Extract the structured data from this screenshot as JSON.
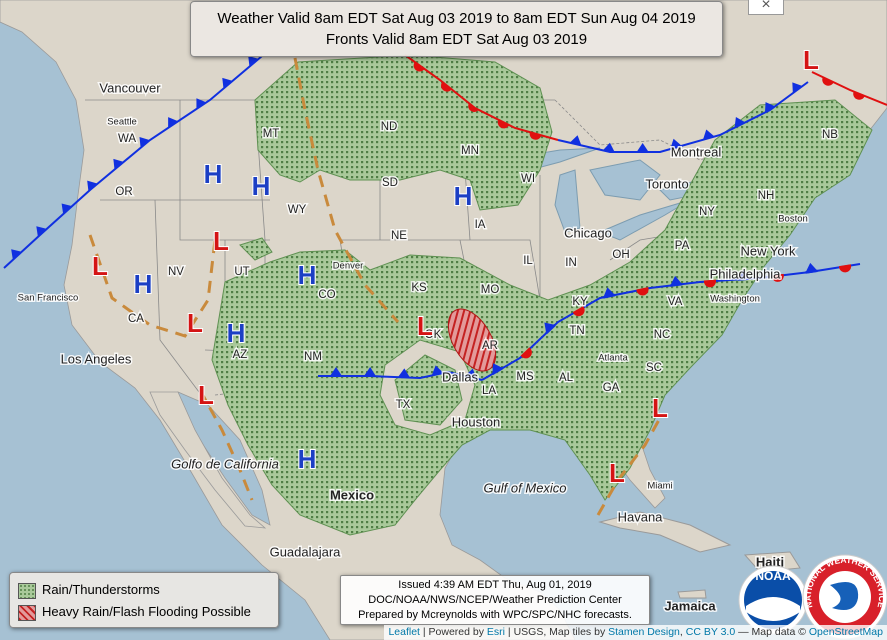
{
  "header": {
    "lines": [
      "Weather Valid 8am EDT Sat Aug 03 2019 to 8am EDT Sun Aug 04 2019",
      "Fronts Valid 8am EDT Sat Aug 03 2019"
    ]
  },
  "close": "×",
  "map_labels": [
    "Vancouver",
    "Seattle",
    "WA",
    "OR",
    "San Francisco",
    "CA",
    "NV",
    "UT",
    "CO",
    "AZ",
    "NM",
    "Los Angeles",
    "MT",
    "WY",
    "ND",
    "SD",
    "NE",
    "KS",
    "OK",
    "TX",
    "Denver",
    "Dallas",
    "Houston",
    "MN",
    "IA",
    "MO",
    "AR",
    "LA",
    "MS",
    "AL",
    "WI",
    "IL",
    "IN",
    "OH",
    "KY",
    "TN",
    "GA",
    "SC",
    "NC",
    "VA",
    "PA",
    "NY",
    "Chicago",
    "Toronto",
    "Montreal",
    "NH",
    "NB",
    "Boston",
    "New York",
    "Philadelphia",
    "Washington",
    "Atlanta",
    "Miami",
    "Havana",
    "Gulf of Mexico",
    "Golfo de California",
    "Mexico",
    "Guadalajara",
    "Jamaica",
    "Haiti"
  ],
  "pressure_centers": [
    "H",
    "H",
    "H",
    "H",
    "H",
    "H",
    "H",
    "L",
    "L",
    "L",
    "L",
    "L",
    "L",
    "L",
    "L"
  ],
  "legend": {
    "items": [
      "Rain/Thunderstorms",
      "Heavy Rain/Flash Flooding Possible"
    ]
  },
  "issued": {
    "lines": [
      "Issued 4:39 AM EDT Thu, Aug 01, 2019",
      "DOC/NOAA/NWS/NCEP/Weather Prediction Center",
      "Prepared by Mcreynolds with WPC/SPC/NHC forecasts."
    ]
  },
  "logos": {
    "noaa": "NOAA",
    "nws": "NATIONAL WEATHER SERVICE"
  },
  "attribution": [
    "Leaflet",
    " | Powered by ",
    "Esri",
    " | USGS, Map tiles by ",
    "Stamen Design",
    ", ",
    "CC BY 3.0",
    " — Map data © ",
    "OpenStreetMap"
  ]
}
